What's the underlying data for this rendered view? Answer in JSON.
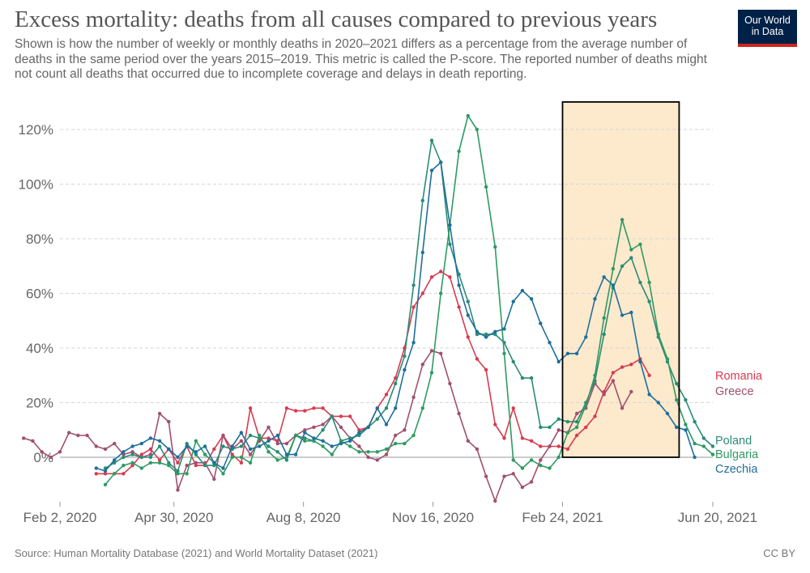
{
  "header": {
    "title": "Excess mortality: deaths from all causes compared to previous years",
    "subtitle": "Shown is how the number of weekly or monthly deaths in 2020–2021 differs as a percentage from the average number of deaths in the same period over the years 2015–2019. This metric is called the P-score. The reported number of deaths might not count all deaths that occurred due to incomplete coverage and delays in death reporting.",
    "logo_line1": "Our World",
    "logo_line2": "in Data"
  },
  "footer": {
    "source": "Source: Human Mortality Database (2021) and World Mortality Dataset (2021)",
    "license": "CC BY"
  },
  "colors": {
    "Romania": "#d73c50",
    "Greece": "#a0506e",
    "Poland": "#2a8c76",
    "Bulgaria": "#2e9a64",
    "Czechia": "#1f6f9a",
    "highlight_fill": "#fde9cc",
    "highlight_stroke": "#000000",
    "grid": "#d6d6d6"
  },
  "chart_data": {
    "type": "line",
    "x_ticks": [
      "Feb 2, 2020",
      "Apr 30, 2020",
      "Aug 8, 2020",
      "Nov 16, 2020",
      "Feb 24, 2021",
      "Jun 20, 2021"
    ],
    "x_tick_dates": [
      "2020-02-02",
      "2020-04-30",
      "2020-08-08",
      "2020-11-16",
      "2021-02-24",
      "2021-06-20"
    ],
    "y_ticks": [
      "0%",
      "20%",
      "40%",
      "60%",
      "80%",
      "100%",
      "120%"
    ],
    "ylim": [
      -15,
      125
    ],
    "xlim": [
      "2020-02-02",
      "2021-06-20"
    ],
    "grid": "horizontal dashed",
    "highlight_range": [
      "2021-02-24",
      "2021-05-25"
    ],
    "series": [
      {
        "name": "Romania",
        "start": "2020-03-01",
        "values": [
          -6,
          -6,
          -6,
          -6,
          -3,
          1,
          3,
          -1,
          3,
          -2,
          4,
          -3,
          -3,
          3,
          8,
          1,
          -2,
          18,
          7,
          7,
          6,
          18,
          17,
          17,
          18,
          18,
          15,
          15,
          15,
          10,
          11,
          18,
          23,
          29,
          40,
          55,
          60,
          66,
          68,
          66,
          55,
          44,
          36,
          32,
          12,
          7,
          18,
          7,
          6,
          4,
          4,
          4,
          3,
          8,
          11,
          15,
          24,
          31,
          33,
          34,
          36,
          30
        ]
      },
      {
        "name": "Greece",
        "start": "2020-01-05",
        "values": [
          7,
          6,
          2,
          0,
          2,
          9,
          8,
          8,
          4,
          3,
          5,
          1,
          2,
          0,
          1,
          16,
          13,
          -12,
          -3,
          -2,
          -2,
          -8,
          8,
          3,
          6,
          1,
          6,
          11,
          5,
          5,
          8,
          10,
          11,
          12,
          15,
          11,
          7,
          4,
          0,
          -1,
          1,
          8,
          10,
          22,
          34,
          39,
          38,
          27,
          16,
          6,
          3,
          -7,
          -16,
          -7,
          -6,
          -11,
          -9,
          -1,
          4,
          10,
          9,
          16,
          18,
          27,
          23,
          28,
          18,
          24
        ]
      },
      {
        "name": "Poland",
        "start": "2020-03-08",
        "values": [
          -4,
          -2,
          0,
          1,
          0,
          0,
          4,
          -2,
          -5,
          5,
          1,
          -3,
          -3,
          4,
          3,
          4,
          8,
          7,
          4,
          2,
          -1,
          8,
          7,
          6,
          10,
          15,
          6,
          7,
          8,
          11,
          14,
          18,
          27,
          37,
          63,
          94,
          116,
          108,
          78,
          67,
          57,
          45,
          45,
          45,
          42,
          35,
          29,
          29,
          11,
          11,
          14,
          13,
          13,
          20,
          28,
          45,
          62,
          70,
          73,
          64,
          57,
          44,
          35,
          27,
          21,
          13,
          7,
          4
        ]
      },
      {
        "name": "Bulgaria",
        "start": "2020-03-08",
        "values": [
          -10,
          -6,
          -3,
          -2,
          -4,
          -2,
          -2,
          -3,
          -6,
          -6,
          6,
          1,
          -2,
          -6,
          0,
          0,
          -2,
          8,
          2,
          -1,
          0,
          8,
          6,
          6,
          4,
          1,
          6,
          4,
          2,
          2,
          2,
          3,
          5,
          5,
          8,
          18,
          31,
          60,
          85,
          112,
          125,
          120,
          99,
          77,
          38,
          -1,
          -4,
          -1,
          -3,
          -4,
          0,
          9,
          11,
          19,
          30,
          51,
          69,
          87,
          76,
          78,
          64,
          45,
          36,
          21,
          12,
          5,
          4,
          1
        ]
      },
      {
        "name": "Czechia",
        "start": "2020-03-01",
        "values": [
          -4,
          -5,
          -1,
          2,
          4,
          5,
          7,
          6,
          3,
          0,
          4,
          2,
          4,
          -2,
          -4,
          4,
          9,
          3,
          4,
          6,
          8,
          1,
          1,
          9,
          7,
          6,
          4,
          5,
          6,
          9,
          11,
          18,
          12,
          18,
          32,
          42,
          75,
          105,
          108,
          85,
          63,
          52,
          46,
          44,
          46,
          47,
          57,
          61,
          58,
          49,
          42,
          35,
          38,
          38,
          44,
          58,
          66,
          63,
          52,
          53,
          35,
          23,
          20,
          16,
          11,
          10,
          0
        ]
      }
    ]
  }
}
